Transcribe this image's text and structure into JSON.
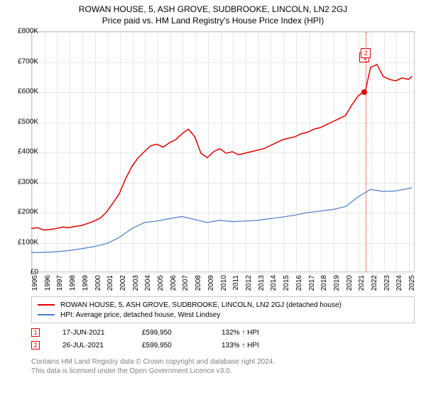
{
  "title": "ROWAN HOUSE, 5, ASH GROVE, SUDBROOKE, LINCOLN, LN2 2GJ",
  "subtitle": "Price paid vs. HM Land Registry's House Price Index (HPI)",
  "chart": {
    "type": "line",
    "background_color": "#ffffff",
    "grid_color": "#e8e8e8",
    "border_color": "#c8c8c8",
    "title_fontsize": 12,
    "label_fontsize": 10,
    "xlim": [
      1995,
      2025.5
    ],
    "ylim": [
      0,
      800000
    ],
    "ytick_step": 100000,
    "yticks": [
      {
        "v": 0,
        "label": "£0"
      },
      {
        "v": 100000,
        "label": "£100K"
      },
      {
        "v": 200000,
        "label": "£200K"
      },
      {
        "v": 300000,
        "label": "£300K"
      },
      {
        "v": 400000,
        "label": "£400K"
      },
      {
        "v": 500000,
        "label": "£500K"
      },
      {
        "v": 600000,
        "label": "£600K"
      },
      {
        "v": 700000,
        "label": "£700K"
      },
      {
        "v": 800000,
        "label": "£800K"
      }
    ],
    "xticks": [
      1995,
      1996,
      1997,
      1998,
      1999,
      2000,
      2001,
      2002,
      2003,
      2004,
      2005,
      2006,
      2007,
      2008,
      2009,
      2010,
      2011,
      2012,
      2013,
      2014,
      2015,
      2016,
      2017,
      2018,
      2019,
      2020,
      2021,
      2022,
      2023,
      2024,
      2025
    ],
    "series": [
      {
        "name": "price_paid",
        "label": "ROWAN HOUSE, 5, ASH GROVE, SUDBROOKE, LINCOLN, LN2 2GJ (detached house)",
        "color": "#e10000",
        "line_width": 1.5,
        "x": [
          1995,
          1995.5,
          1996,
          1996.5,
          1997,
          1997.5,
          1998,
          1998.5,
          1999,
          1999.5,
          2000,
          2000.5,
          2001,
          2001.5,
          2002,
          2002.5,
          2003,
          2003.5,
          2004,
          2004.5,
          2005,
          2005.5,
          2006,
          2006.5,
          2007,
          2007.5,
          2008,
          2008.5,
          2009,
          2009.5,
          2010,
          2010.5,
          2011,
          2011.5,
          2012,
          2012.5,
          2013,
          2013.5,
          2014,
          2014.5,
          2015,
          2015.5,
          2016,
          2016.5,
          2017,
          2017.5,
          2018,
          2018.5,
          2019,
          2019.5,
          2020,
          2020.5,
          2021,
          2021.46,
          2021.57,
          2022,
          2022.5,
          2023,
          2023.5,
          2024,
          2024.5,
          2025,
          2025.3
        ],
        "y": [
          145000,
          148000,
          140000,
          142000,
          145000,
          150000,
          148000,
          152000,
          155000,
          162000,
          170000,
          180000,
          200000,
          230000,
          260000,
          310000,
          350000,
          380000,
          400000,
          420000,
          425000,
          415000,
          430000,
          440000,
          460000,
          475000,
          450000,
          395000,
          380000,
          400000,
          410000,
          395000,
          400000,
          390000,
          395000,
          400000,
          405000,
          410000,
          420000,
          430000,
          440000,
          445000,
          450000,
          460000,
          465000,
          475000,
          480000,
          490000,
          500000,
          510000,
          520000,
          555000,
          585000,
          599950,
          599950,
          680000,
          690000,
          650000,
          640000,
          635000,
          645000,
          640000,
          650000
        ]
      },
      {
        "name": "hpi",
        "label": "HPI: Average price, detached house, West Lindsey",
        "color": "#4a7ec8",
        "line_width": 1.2,
        "x": [
          1995,
          1996,
          1997,
          1998,
          1999,
          2000,
          2001,
          2002,
          2003,
          2004,
          2005,
          2006,
          2007,
          2008,
          2009,
          2010,
          2011,
          2012,
          2013,
          2014,
          2015,
          2016,
          2017,
          2018,
          2019,
          2020,
          2021,
          2022,
          2023,
          2024,
          2025,
          2025.3
        ],
        "y": [
          65000,
          66000,
          68000,
          72000,
          78000,
          85000,
          95000,
          115000,
          145000,
          165000,
          170000,
          178000,
          185000,
          175000,
          165000,
          172000,
          168000,
          170000,
          172000,
          178000,
          183000,
          190000,
          198000,
          203000,
          208000,
          218000,
          250000,
          275000,
          268000,
          270000,
          278000,
          280000
        ]
      }
    ],
    "markers": [
      {
        "id": "1",
        "x": 2021.46,
        "y": 599950,
        "color": "#e10000",
        "box_y": 715000,
        "show_line": false,
        "show_point": true
      },
      {
        "id": "2",
        "x": 2021.57,
        "y": 599950,
        "color": "#e10000",
        "box_y": 730000,
        "show_line": true,
        "show_point": false
      }
    ]
  },
  "legend": {
    "items": [
      {
        "color": "#e10000",
        "label": "ROWAN HOUSE, 5, ASH GROVE, SUDBROOKE, LINCOLN, LN2 2GJ (detached house)"
      },
      {
        "color": "#4a7ec8",
        "label": "HPI: Average price, detached house, West Lindsey"
      }
    ]
  },
  "events": [
    {
      "marker": "1",
      "marker_color": "#e10000",
      "date": "17-JUN-2021",
      "price": "£599,950",
      "delta": "132% ↑ HPI"
    },
    {
      "marker": "2",
      "marker_color": "#e10000",
      "date": "26-JUL-2021",
      "price": "£599,950",
      "delta": "133% ↑ HPI"
    }
  ],
  "footer": {
    "line1": "Contains HM Land Registry data © Crown copyright and database right 2024.",
    "line2": "This data is licensed under the Open Government Licence v3.0.",
    "color": "#808080"
  }
}
